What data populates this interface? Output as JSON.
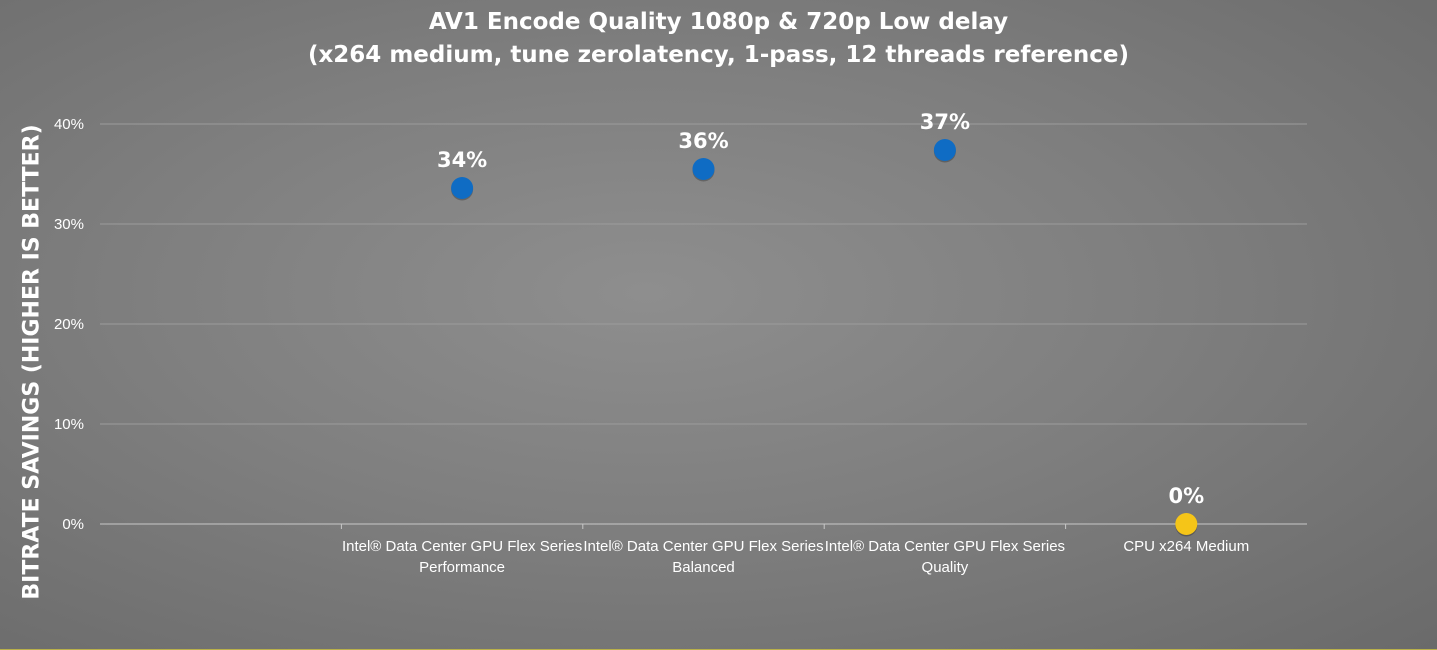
{
  "chart_data": {
    "type": "scatter",
    "title_line1": "AV1 Encode Quality 1080p & 720p Low delay",
    "title_line2": "(x264 medium, tune zerolatency, 1-pass, 12 threads reference)",
    "xlabel": "",
    "ylabel": "BITRATE SAVINGS (HIGHER IS BETTER)",
    "ylim": [
      0,
      40
    ],
    "yticks": [
      "0%",
      "10%",
      "20%",
      "30%",
      "40%"
    ],
    "grid": true,
    "categories": [
      [
        "",
        ""
      ],
      [
        "Intel® Data Center GPU Flex Series",
        "Performance"
      ],
      [
        "Intel® Data Center GPU Flex Series",
        "Balanced"
      ],
      [
        "Intel® Data Center GPU Flex Series",
        "Quality"
      ],
      [
        "CPU x264 Medium",
        ""
      ]
    ],
    "points": [
      {
        "category": 1,
        "value": 33.6,
        "label": "34%",
        "color": "#0f6cc4"
      },
      {
        "category": 2,
        "value": 35.5,
        "label": "36%",
        "color": "#0f6cc4"
      },
      {
        "category": 3,
        "value": 37.4,
        "label": "37%",
        "color": "#0f6cc4"
      },
      {
        "category": 4,
        "value": 0.0,
        "label": "0%",
        "color": "#f5c518"
      }
    ]
  }
}
